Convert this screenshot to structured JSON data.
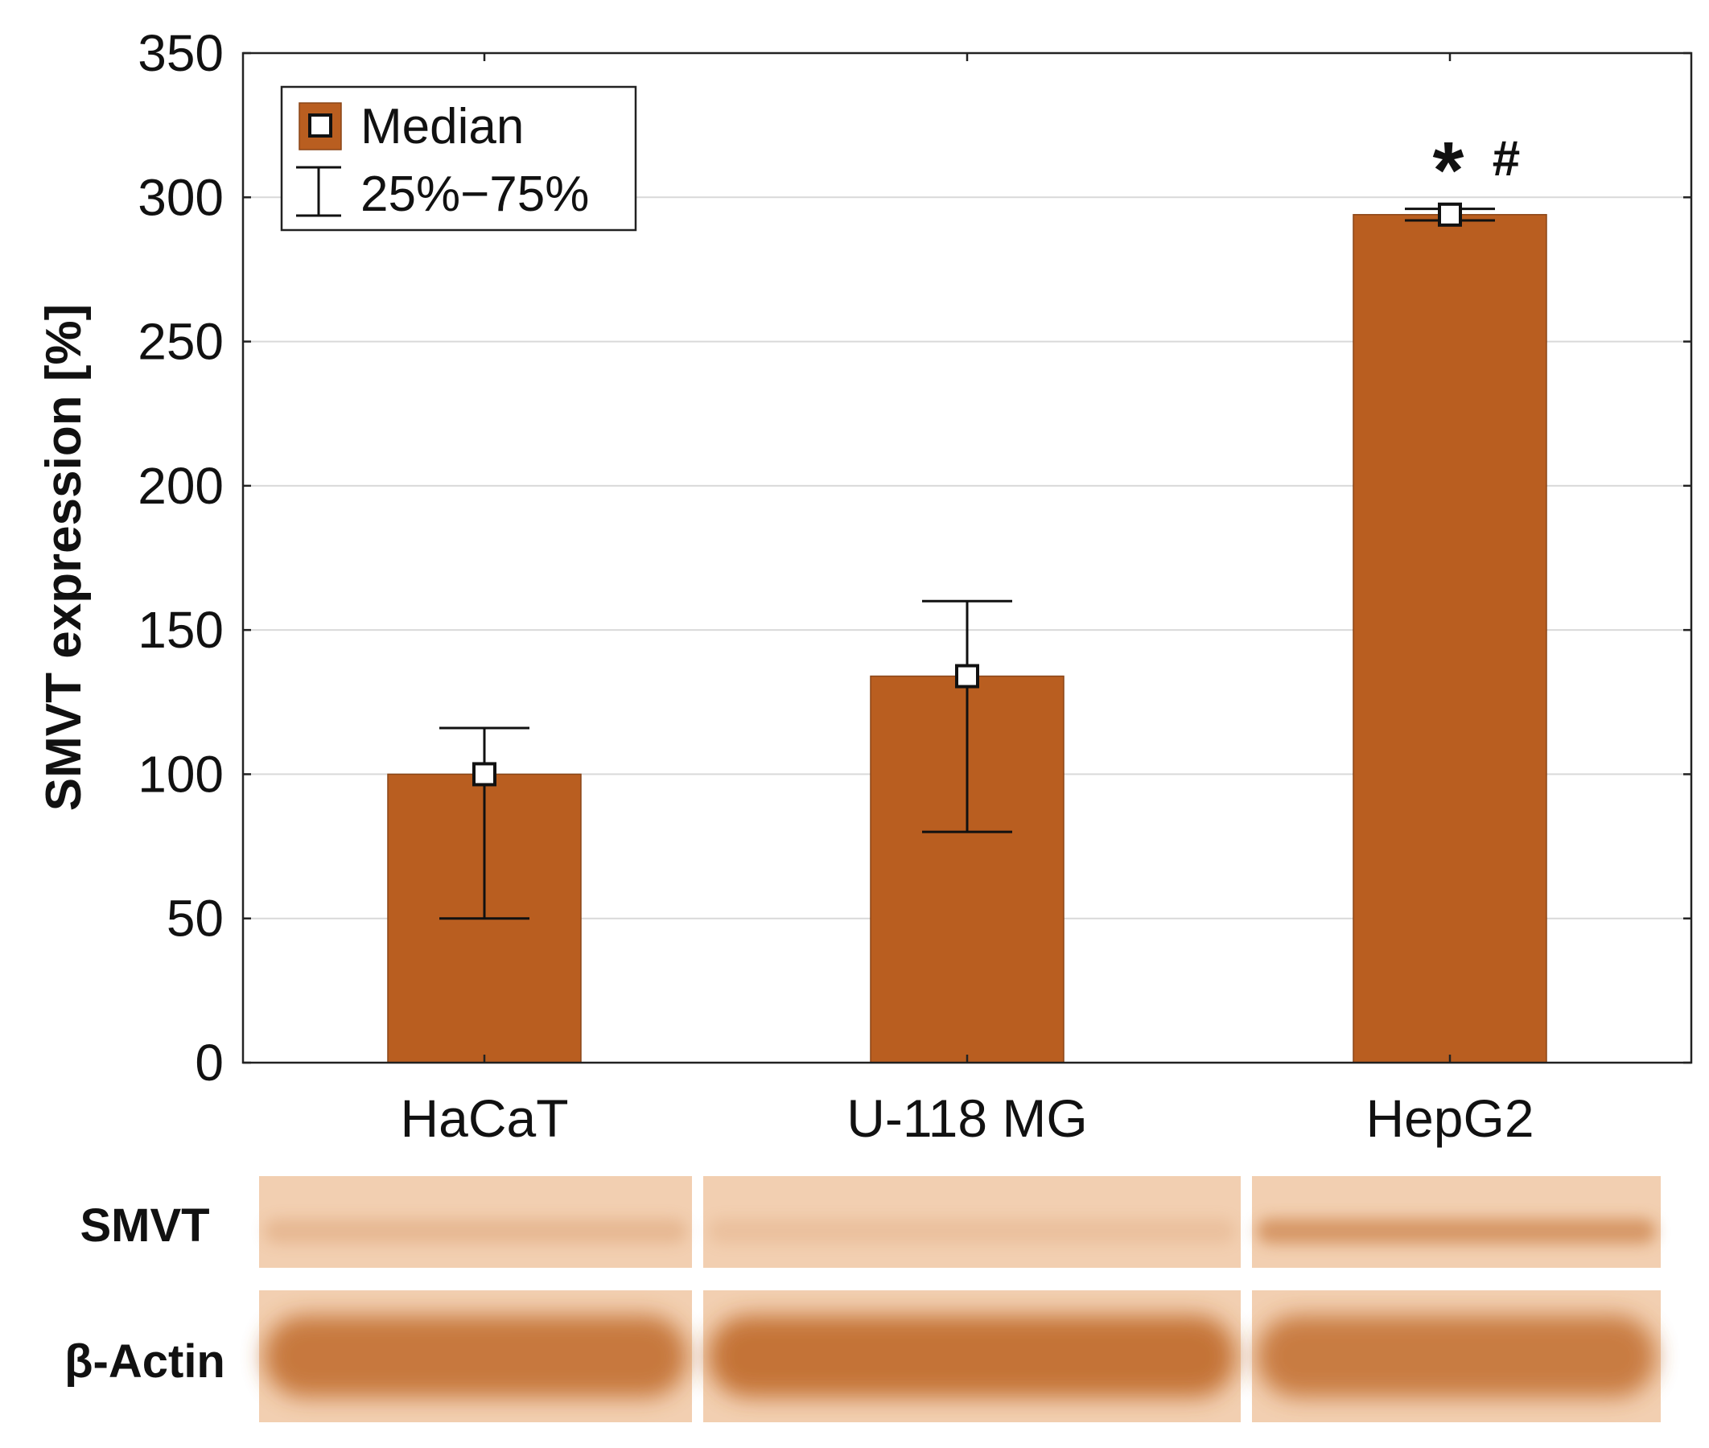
{
  "chart_data": {
    "type": "bar",
    "title": "",
    "xlabel": "",
    "ylabel": "SMVT expression [%]",
    "ylim": [
      0,
      350
    ],
    "yticks": [
      0,
      50,
      100,
      150,
      200,
      250,
      300,
      350
    ],
    "grid": true,
    "categories": [
      "HaCaT",
      "U-118 MG",
      "HepG2"
    ],
    "series": [
      {
        "name": "Median",
        "values": [
          100,
          134,
          294
        ],
        "q25": [
          50,
          80,
          292
        ],
        "q75": [
          116,
          160,
          296
        ]
      }
    ],
    "legend": {
      "position": "top-left",
      "entries": [
        {
          "label": "Median",
          "symbol": "square-marker"
        },
        {
          "label": "25%−75%",
          "symbol": "error-bar"
        }
      ]
    },
    "annotations": [
      {
        "category": "HepG2",
        "text": "*"
      },
      {
        "category": "HepG2",
        "text": "#"
      }
    ],
    "colors": {
      "bar": "#b95e20",
      "bar_edge": "#8a4517",
      "grid": "#d9d9d9",
      "axis": "#222222"
    }
  },
  "western_blot": {
    "rows": [
      {
        "label": "SMVT",
        "band_intensity": [
          0.22,
          0.14,
          0.55
        ]
      },
      {
        "label": "β-Actin",
        "band_intensity": [
          0.85,
          0.9,
          0.82
        ]
      }
    ],
    "colors": {
      "background": "#f2cfb1",
      "band": "#c06a2a"
    }
  }
}
